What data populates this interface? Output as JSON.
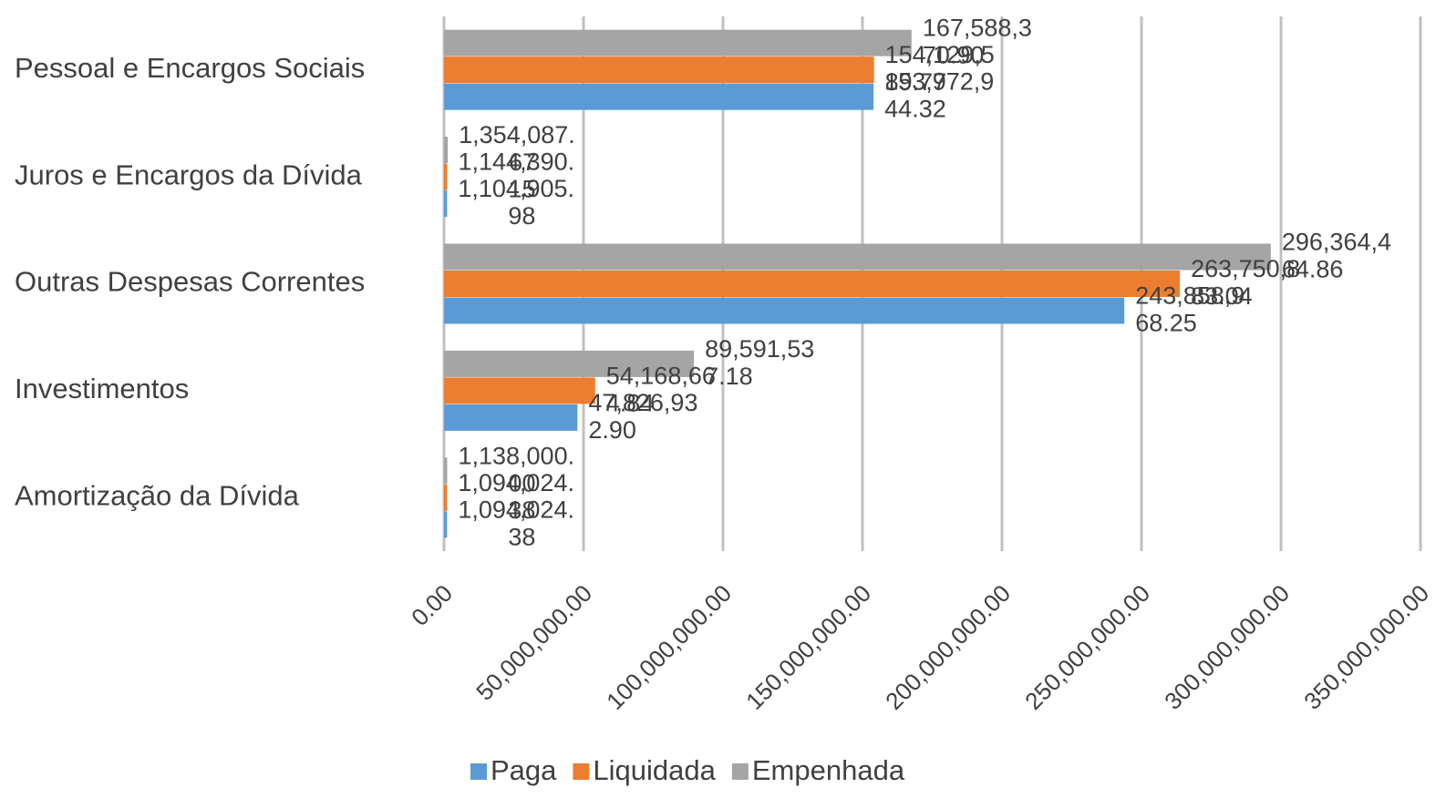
{
  "chart_data": {
    "type": "hbar",
    "categories": [
      "Pessoal e Encargos Sociais",
      "Juros e Encargos da Dívida",
      "Outras Despesas Correntes",
      "Investimentos",
      "Amortização da Dívida"
    ],
    "series": [
      {
        "name": "Paga",
        "color": "#5b9bd5",
        "values": [
          153972944.32,
          1104905.98,
          243858968.25,
          47826932.9,
          1094024.38
        ],
        "value_labels": [
          "153,972,944.32",
          "1,104,905.98",
          "243,858,968.25",
          "47,826,932.90",
          "1,094,024.38"
        ]
      },
      {
        "name": "Liquidada",
        "color": "#ed7d31",
        "values": [
          154129589.77,
          1144390.15,
          263750883.04,
          54168664.84,
          1094024.38
        ],
        "value_labels": [
          "154,129,589.77",
          "1,144,390.15",
          "263,750,883.04",
          "54,168,664.84",
          "1,094,024.38"
        ]
      },
      {
        "name": "Empenhada",
        "color": "#a5a5a5",
        "values": [
          167588370.9,
          1354087.67,
          296364464.86,
          89591537.18,
          1138000.0
        ],
        "value_labels": [
          "167,588,370.90",
          "1,354,087.67",
          "296,364,464.86",
          "89,591,537.18",
          "1,138,000.00"
        ]
      }
    ],
    "xlim": [
      0,
      350000000
    ],
    "xticks": [
      {
        "value": 0,
        "label": "0.00"
      },
      {
        "value": 50000000,
        "label": "50,000,000.00"
      },
      {
        "value": 100000000,
        "label": "100,000,000.00"
      },
      {
        "value": 150000000,
        "label": "150,000,000.00"
      },
      {
        "value": 200000000,
        "label": "200,000,000.00"
      },
      {
        "value": 250000000,
        "label": "250,000,000.00"
      },
      {
        "value": 300000000,
        "label": "300,000,000.00"
      },
      {
        "value": 350000000,
        "label": "350,000,000.00"
      }
    ],
    "grid": true,
    "legend": "bottom"
  }
}
